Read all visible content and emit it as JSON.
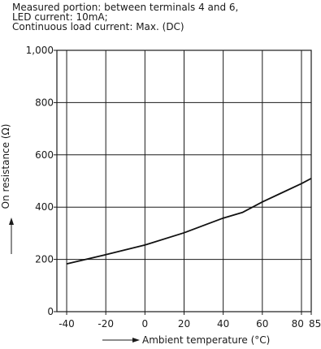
{
  "notes": [
    "Measured portion: between terminals 4 and 6,",
    "LED current: 10mA;",
    "Continuous load current: Max. (DC)"
  ],
  "chart_data": {
    "type": "line",
    "title": "",
    "xlabel": "Ambient temperature (°C)",
    "ylabel": "On resistance (Ω)",
    "xlim": [
      -45,
      85
    ],
    "ylim": [
      0,
      1000
    ],
    "x_ticks": [
      -40,
      -20,
      0,
      20,
      40,
      60,
      80,
      85
    ],
    "x_tick_labels": [
      "-40",
      "-20",
      "0",
      "20",
      "40",
      "60",
      "80",
      "85"
    ],
    "y_ticks": [
      0,
      200,
      400,
      600,
      800,
      1000
    ],
    "y_tick_labels": [
      "0",
      "200",
      "400",
      "600",
      "800",
      "1,000"
    ],
    "grid": true,
    "series": [
      {
        "x": [
          -40,
          -20,
          0,
          20,
          40,
          50,
          60,
          70,
          80,
          85
        ],
        "y": [
          183,
          218,
          255,
          302,
          358,
          380,
          420,
          455,
          490,
          510
        ]
      }
    ]
  }
}
